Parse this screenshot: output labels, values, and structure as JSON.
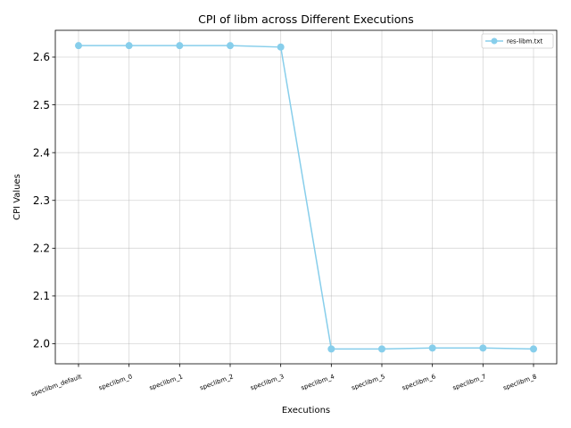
{
  "chart_data": {
    "type": "line",
    "title": "CPI of libm across Different Executions",
    "xlabel": "Executions",
    "ylabel": "CPI Values",
    "categories": [
      "speclibm_default",
      "speclibm_0",
      "speclibm_1",
      "speclibm_2",
      "speclibm_3",
      "speclibm_4",
      "speclibm_5",
      "speclibm_6",
      "speclibm_7",
      "speclibm_8"
    ],
    "series": [
      {
        "name": "res-libm.txt",
        "color": "#87CEEB",
        "marker": "circle",
        "values": [
          2.624,
          2.624,
          2.624,
          2.624,
          2.621,
          1.989,
          1.989,
          1.991,
          1.991,
          1.989
        ]
      }
    ],
    "ylim": [
      1.958,
      2.656
    ],
    "yticks": [
      2.0,
      2.1,
      2.2,
      2.3,
      2.4,
      2.5,
      2.6
    ],
    "ytick_labels": [
      "2.0",
      "2.1",
      "2.2",
      "2.3",
      "2.4",
      "2.5",
      "2.6"
    ],
    "grid": true,
    "legend_position": "top-right"
  }
}
